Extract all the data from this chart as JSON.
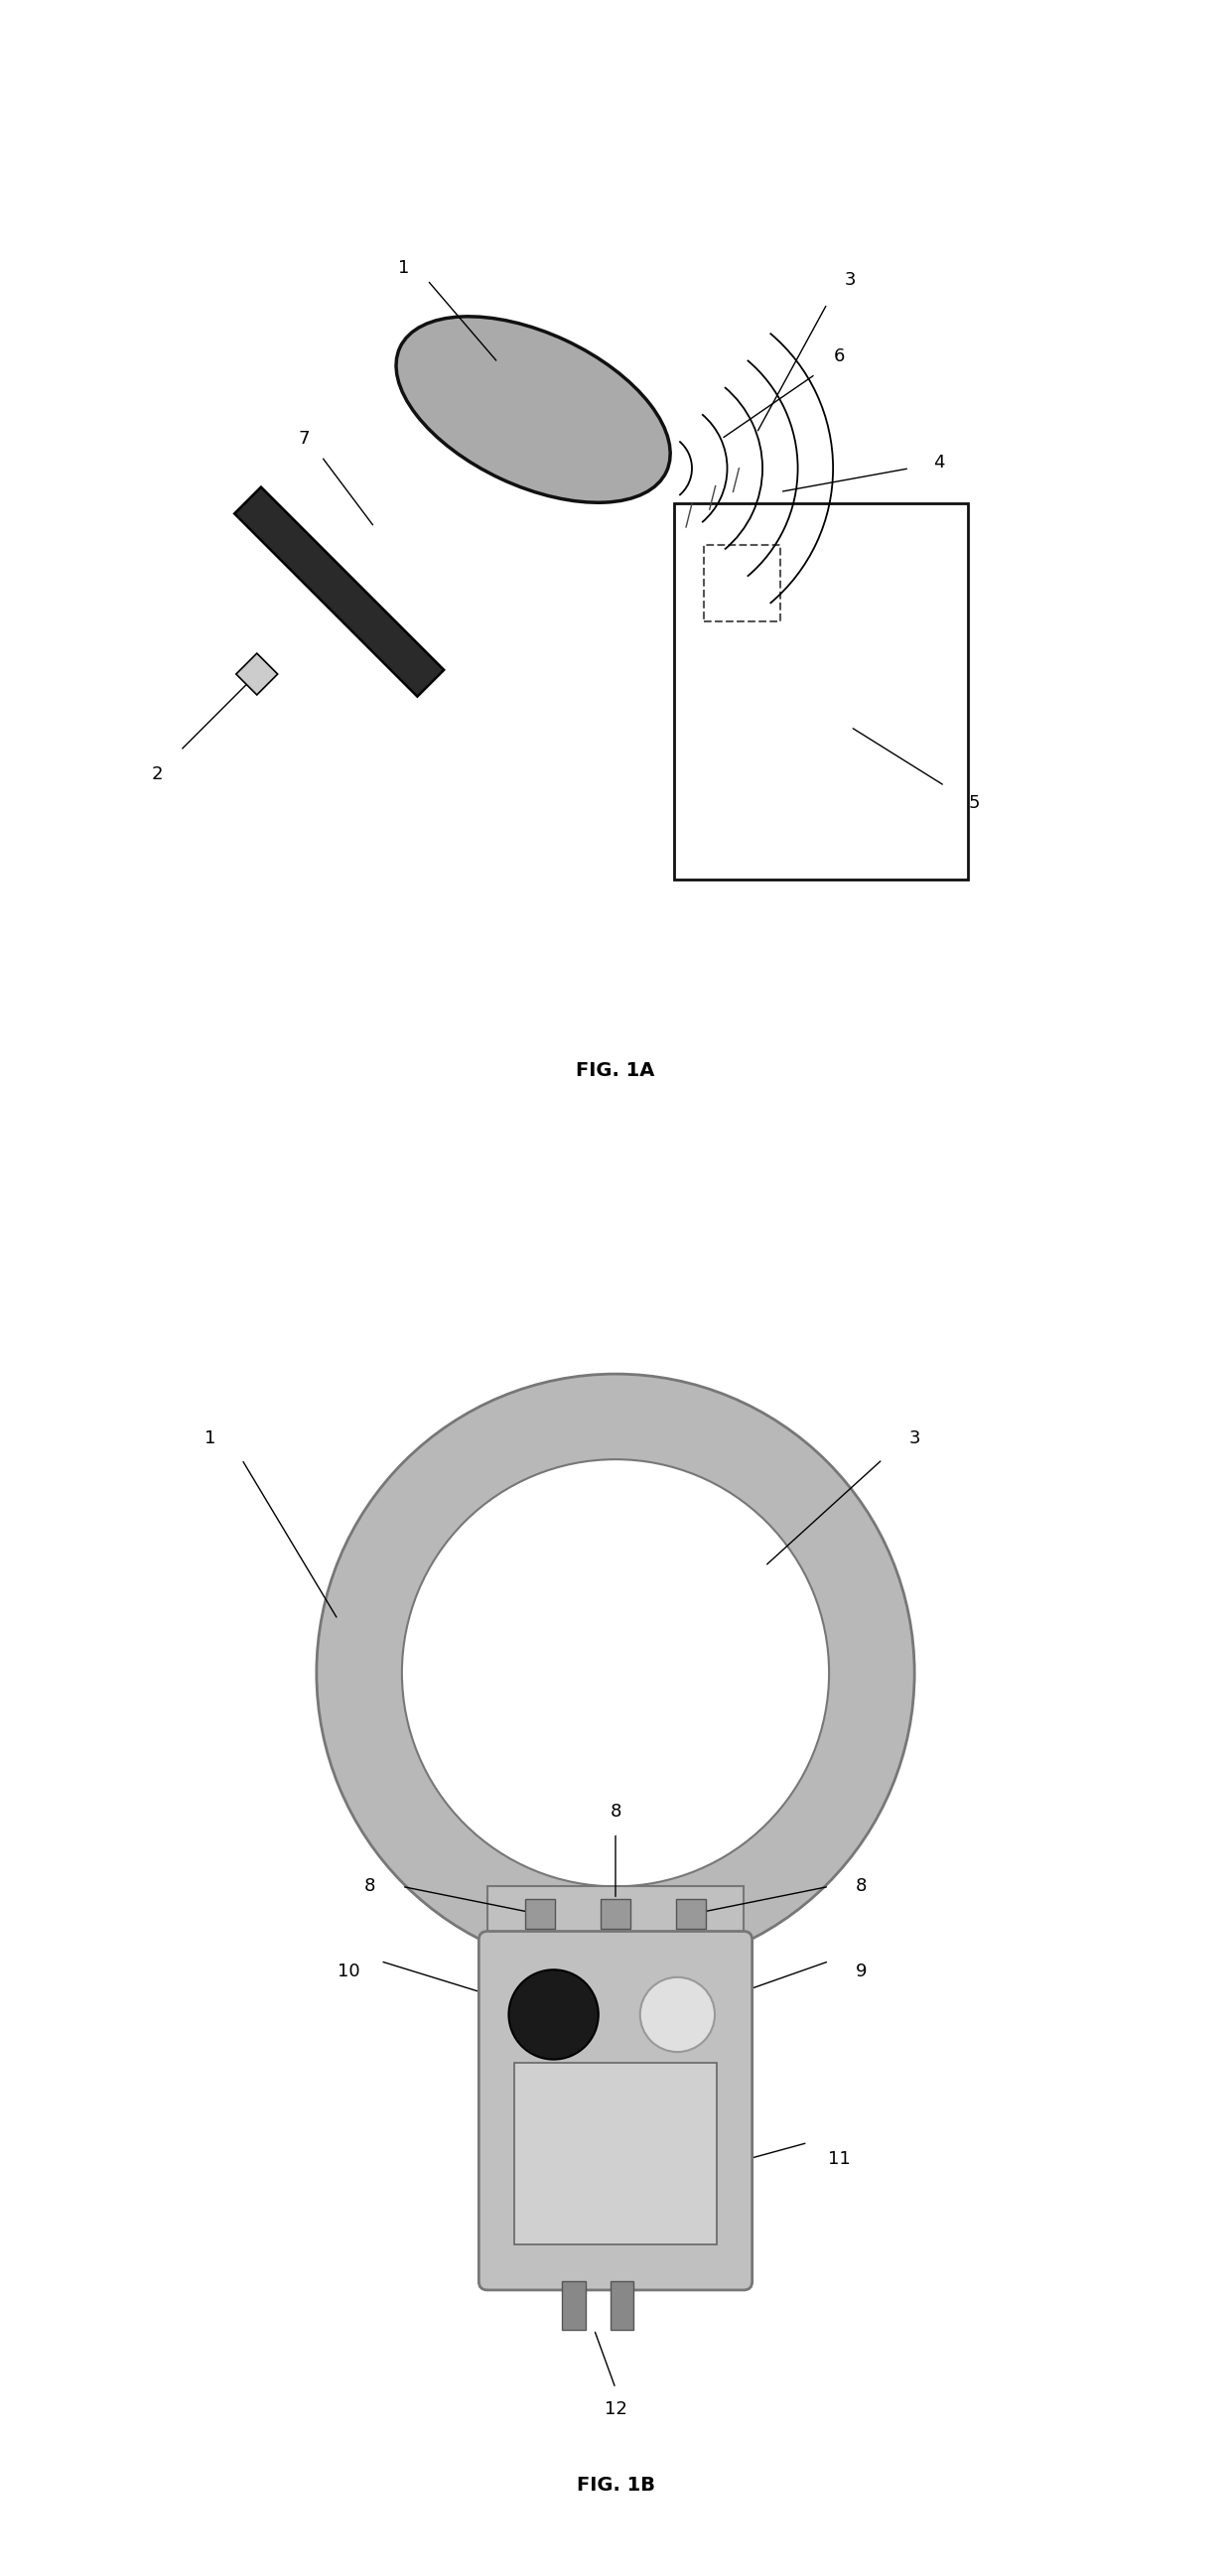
{
  "fig1a_title": "FIG. 1A",
  "fig1b_title": "FIG. 1B",
  "background_color": "#ffffff",
  "ellipse_color": "#aaaaaa",
  "ellipse_edge_color": "#111111",
  "handle_color": "#2a2a2a",
  "handle_edge_color": "#000000",
  "sensor_color": "#cccccc",
  "box_color": "#ffffff",
  "box_edge_color": "#111111",
  "square_color": "#ffffff",
  "square_edge_color": "#555555",
  "ring_color": "#b8b8b8",
  "ring_edge_color": "#777777",
  "device_body_color": "#c0c0c0",
  "device_body_edge": "#777777",
  "screen_color": "#d0d0d0",
  "screen_edge": "#666666",
  "button_dark_color": "#1a1a1a",
  "button_light_color": "#e0e0e0",
  "small_sq_color": "#999999",
  "connector_color": "#888888",
  "title_fontsize": 14,
  "label_fontsize": 13,
  "line_color": "#000000",
  "fig1a_xlim": [
    0,
    10
  ],
  "fig1a_ylim": [
    0,
    8
  ],
  "fig1b_xlim": [
    0,
    10
  ],
  "fig1b_ylim": [
    0,
    12
  ]
}
